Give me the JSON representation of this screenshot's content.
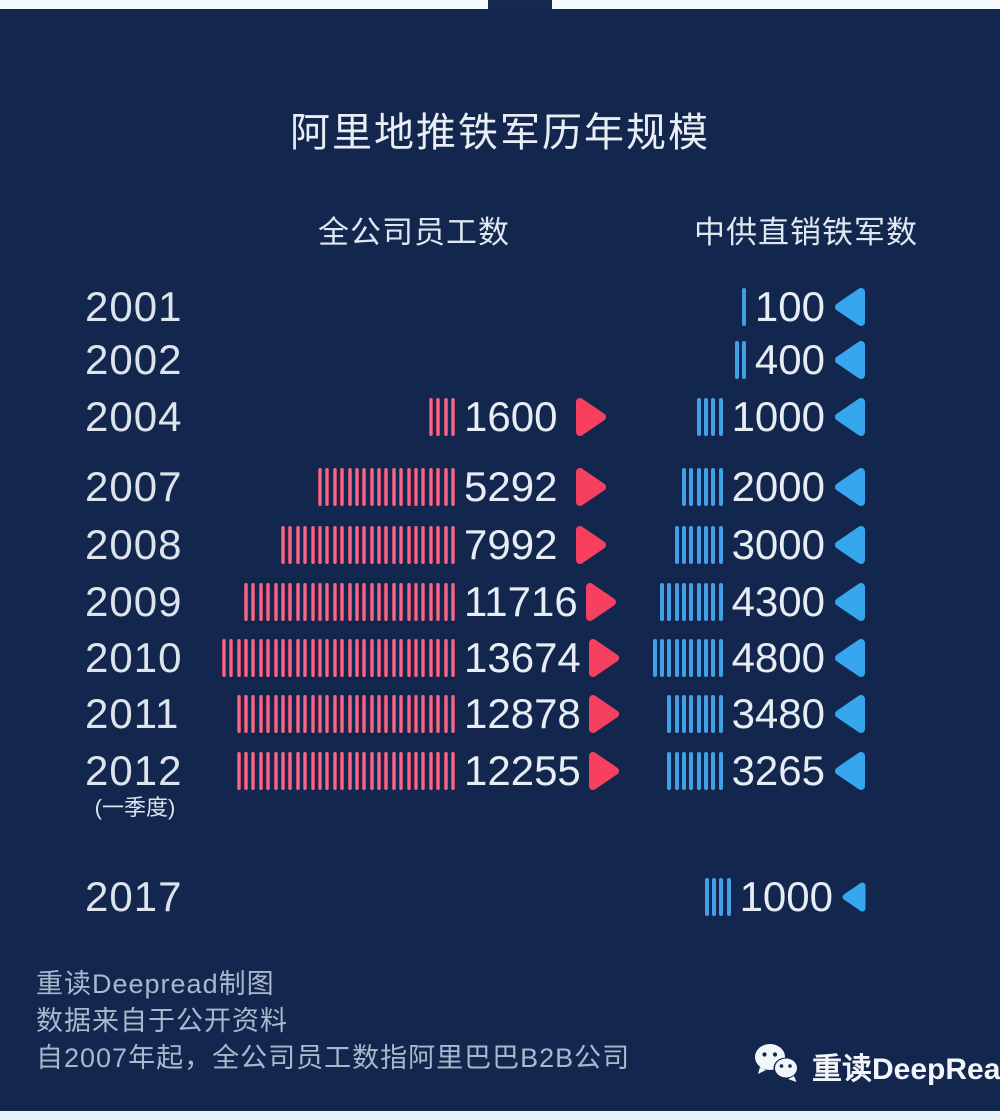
{
  "page": {
    "title": "阿里地推铁军历年规模",
    "col_left_header": "全公司员工数",
    "col_right_header": "中供直销铁军数",
    "footer_lines": [
      "重读Deepread制图",
      "数据来自于公开资料",
      "自2007年起，全公司员工数指阿里巴巴B2B公司"
    ],
    "brand": "重读DeepRead"
  },
  "colors": {
    "background": "#13274e",
    "red_accent": "#f6405f",
    "red_tick": "#ef6e8d",
    "blue_accent": "#36a7ef",
    "blue_tick": "#42a1e4",
    "text": "#e8edf5",
    "footer_text": "#a9b8cd"
  },
  "chart_data": {
    "type": "bar",
    "title": "阿里地推铁军历年规模",
    "categories": [
      "2001",
      "2002",
      "2004",
      "2007",
      "2008",
      "2009",
      "2010",
      "2011",
      "2012 (一季度)",
      "2017"
    ],
    "series": [
      {
        "name": "全公司员工数",
        "color": "#ef6e8d",
        "values": [
          null,
          null,
          1600,
          5292,
          7992,
          11716,
          13674,
          12878,
          12255,
          null
        ]
      },
      {
        "name": "中供直销铁军数",
        "color": "#42a1e4",
        "values": [
          100,
          400,
          1000,
          2000,
          3000,
          4300,
          4800,
          3480,
          3265,
          1000
        ]
      }
    ],
    "legend_position": "top",
    "grid": false,
    "rows": [
      {
        "year": "2001",
        "sub": "",
        "left": null,
        "right": {
          "value": "100",
          "ticks": 1,
          "small": false
        }
      },
      {
        "year": "2002",
        "sub": "",
        "left": null,
        "right": {
          "value": "400",
          "ticks": 2,
          "small": false
        }
      },
      {
        "year": "2004",
        "sub": "",
        "left": {
          "value": "1600",
          "ticks": 4
        },
        "right": {
          "value": "1000",
          "ticks": 4,
          "small": false
        }
      },
      {
        "year": "2007",
        "sub": "",
        "left": {
          "value": "5292",
          "ticks": 19
        },
        "right": {
          "value": "2000",
          "ticks": 6,
          "small": false
        }
      },
      {
        "year": "2008",
        "sub": "",
        "left": {
          "value": "7992",
          "ticks": 24
        },
        "right": {
          "value": "3000",
          "ticks": 7,
          "small": false
        }
      },
      {
        "year": "2009",
        "sub": "",
        "left": {
          "value": "11716",
          "ticks": 29
        },
        "right": {
          "value": "4300",
          "ticks": 9,
          "small": false
        }
      },
      {
        "year": "2010",
        "sub": "",
        "left": {
          "value": "13674",
          "ticks": 32
        },
        "right": {
          "value": "4800",
          "ticks": 10,
          "small": false
        }
      },
      {
        "year": "2011",
        "sub": "",
        "left": {
          "value": "12878",
          "ticks": 30
        },
        "right": {
          "value": "3480",
          "ticks": 8,
          "small": false
        }
      },
      {
        "year": "2012",
        "sub": "(一季度)",
        "left": {
          "value": "12255",
          "ticks": 30
        },
        "right": {
          "value": "3265",
          "ticks": 8,
          "small": false
        }
      },
      {
        "year": "2017",
        "sub": "",
        "left": null,
        "right": {
          "value": "1000",
          "ticks": 4,
          "small": true
        }
      }
    ]
  }
}
